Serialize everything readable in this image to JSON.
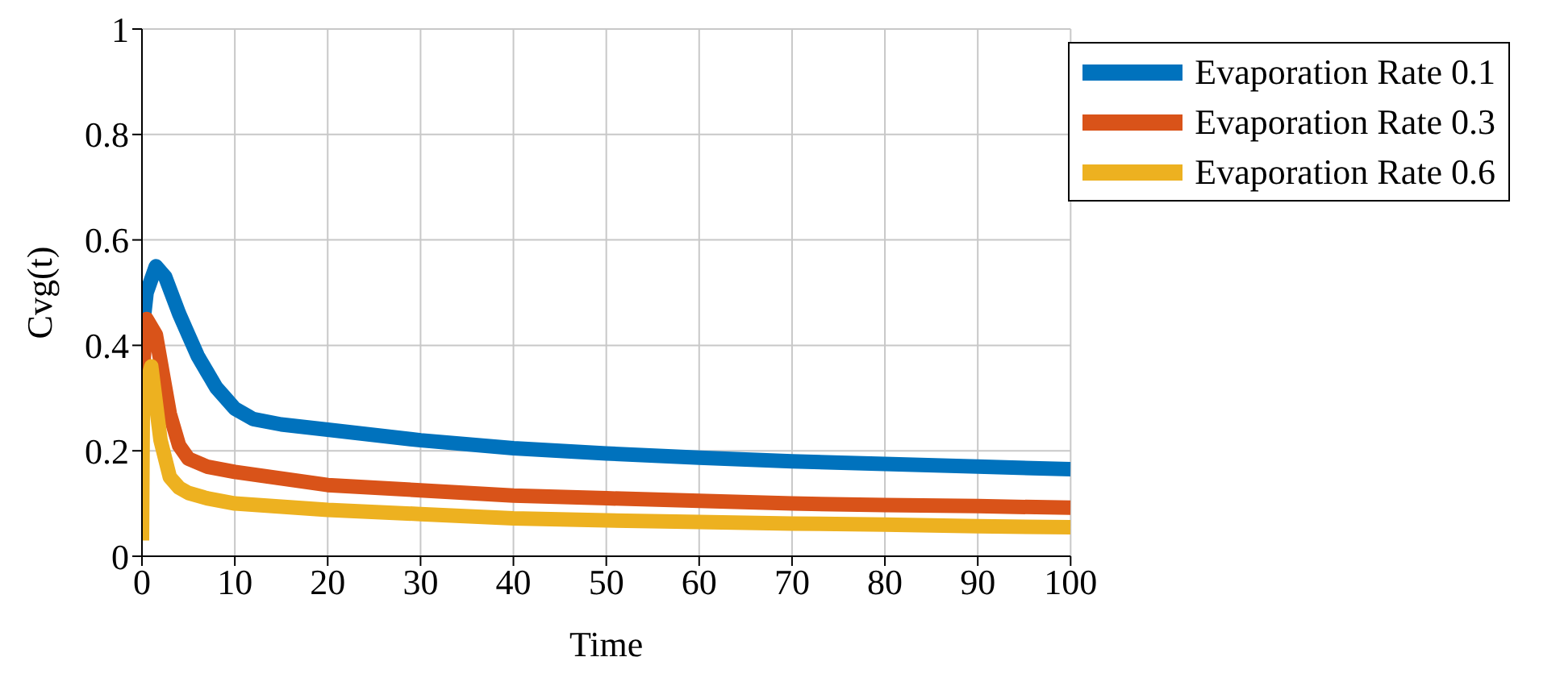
{
  "chart_data": {
    "type": "line",
    "xlabel": "Time",
    "ylabel": "Cvg(t)",
    "xlim": [
      0,
      100
    ],
    "ylim": [
      0,
      1
    ],
    "xticks": [
      0,
      10,
      20,
      30,
      40,
      50,
      60,
      70,
      80,
      90,
      100
    ],
    "yticks": [
      0,
      0.2,
      0.4,
      0.6,
      0.8,
      1
    ],
    "grid": true,
    "legend": "top right",
    "marker": "none",
    "line_style": "solid",
    "series": [
      {
        "name": "Evaporation Rate 0.1",
        "color": "#0072bd",
        "x": [
          0,
          0.5,
          1.5,
          2.5,
          4,
          5,
          6,
          7,
          8,
          9,
          10,
          12,
          15,
          20,
          30,
          40,
          50,
          60,
          70,
          80,
          90,
          100
        ],
        "values": [
          0.42,
          0.5,
          0.55,
          0.53,
          0.46,
          0.42,
          0.38,
          0.35,
          0.32,
          0.3,
          0.28,
          0.26,
          0.25,
          0.24,
          0.22,
          0.205,
          0.195,
          0.187,
          0.18,
          0.175,
          0.17,
          0.165
        ]
      },
      {
        "name": "Evaporation Rate 0.3",
        "color": "#d95319",
        "x": [
          0,
          0.5,
          1.5,
          2.5,
          3,
          4,
          5,
          7,
          10,
          20,
          30,
          40,
          50,
          60,
          70,
          80,
          90,
          100
        ],
        "values": [
          0.33,
          0.45,
          0.42,
          0.32,
          0.27,
          0.21,
          0.185,
          0.17,
          0.16,
          0.135,
          0.125,
          0.115,
          0.11,
          0.105,
          0.1,
          0.097,
          0.095,
          0.092
        ]
      },
      {
        "name": "Evaporation Rate 0.6",
        "color": "#edb120",
        "x": [
          0,
          0.1,
          1,
          2,
          3,
          4,
          5,
          7,
          10,
          20,
          30,
          40,
          50,
          60,
          70,
          80,
          90,
          100
        ],
        "values": [
          0.03,
          0.3,
          0.36,
          0.22,
          0.15,
          0.13,
          0.12,
          0.11,
          0.1,
          0.088,
          0.08,
          0.072,
          0.068,
          0.065,
          0.062,
          0.06,
          0.057,
          0.055
        ]
      }
    ]
  }
}
